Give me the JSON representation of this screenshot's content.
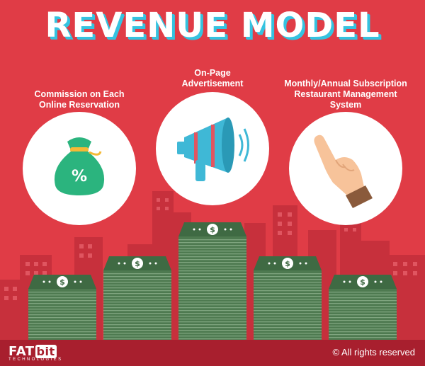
{
  "title": "REVENUE MODEL",
  "items": [
    {
      "label": "Commission on Each\nOnline Reservation",
      "icon": "money-bag-percent-icon"
    },
    {
      "label": "On-Page\nAdvertisement",
      "icon": "megaphone-icon"
    },
    {
      "label": "Monthly/Annual Subscription\nRestaurant Management\nSystem",
      "icon": "pointing-hand-icon"
    }
  ],
  "money_symbol": "$",
  "bag_symbol": "%",
  "footer": {
    "brand_main": "FAT",
    "brand_bit": "bit",
    "brand_sub": "TECHNOLOGIES",
    "rights": "© All rights reserved"
  },
  "colors": {
    "background": "#e03c46",
    "buildings": "#c7303c",
    "title_shadow": "#35c3e0",
    "footer": "#a81f2e",
    "money": "#4e7a50",
    "bag": "#2bb47e"
  }
}
